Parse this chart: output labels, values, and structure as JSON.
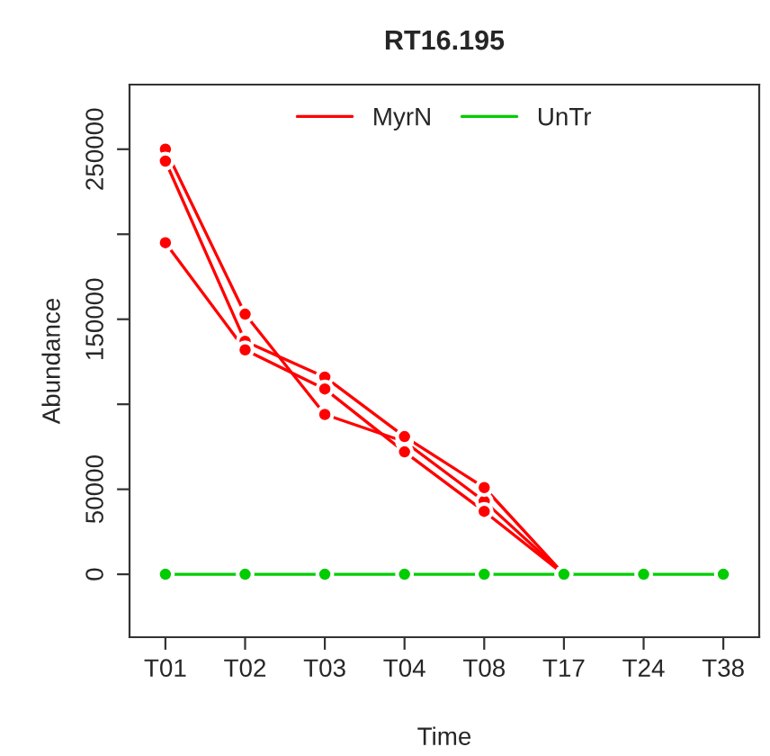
{
  "chart_data": {
    "type": "line",
    "title": "RT16.195",
    "xlabel": "Time",
    "ylabel": "Abundance",
    "categories": [
      "T01",
      "T02",
      "T03",
      "T04",
      "T08",
      "T17",
      "T24",
      "T38"
    ],
    "series": [
      {
        "name": "MyrN",
        "color": "#ff0000",
        "values": [
          250000,
          153000,
          94000,
          78000,
          43000,
          0,
          null,
          null
        ]
      },
      {
        "color": "#ff0000",
        "values": [
          243000,
          137000,
          116000,
          81000,
          51000,
          0,
          null,
          null
        ]
      },
      {
        "color": "#ff0000",
        "values": [
          195000,
          132000,
          109000,
          72000,
          37000,
          0,
          null,
          null
        ]
      },
      {
        "name": "UnTr",
        "color": "#00cc00",
        "values": [
          0,
          0,
          0,
          0,
          0,
          0,
          0,
          0
        ]
      }
    ],
    "ylim": [
      -37000,
      288000
    ],
    "yticks": [
      0,
      50000,
      {
        "value": 100000,
        "label": null
      },
      150000,
      {
        "value": 200000,
        "label": null
      },
      250000
    ],
    "legend": "top",
    "marker": "circle",
    "line_style": "solid",
    "grid": false
  }
}
